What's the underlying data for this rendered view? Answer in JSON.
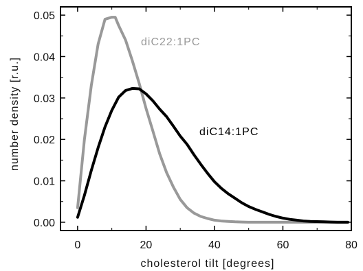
{
  "chart_data": {
    "type": "line",
    "xlabel": "cholesterol tilt  [degrees]",
    "ylabel": "number density  [r.u.]",
    "xlim": [
      -5,
      80
    ],
    "ylim": [
      -0.002,
      0.052
    ],
    "xticks": [
      0,
      20,
      40,
      60,
      80
    ],
    "yticks": [
      0.0,
      0.01,
      0.02,
      0.03,
      0.04,
      0.05
    ],
    "xtick_labels": [
      "0",
      "20",
      "40",
      "60",
      "80"
    ],
    "ytick_labels": [
      "0.00",
      "0.01",
      "0.02",
      "0.03",
      "0.04",
      "0.05"
    ],
    "grid": false,
    "series": [
      {
        "name": "diC22:1PC",
        "color": "#999999",
        "x": [
          0,
          2,
          4,
          6,
          8,
          10,
          11,
          12,
          14,
          16,
          18,
          20,
          22,
          24,
          26,
          28,
          30,
          32,
          34,
          36,
          38,
          40,
          42,
          44,
          46,
          48,
          50,
          55,
          60,
          65,
          70,
          75,
          79
        ],
        "y": [
          0.0035,
          0.02,
          0.033,
          0.043,
          0.049,
          0.0495,
          0.0495,
          0.0475,
          0.044,
          0.039,
          0.0335,
          0.0275,
          0.022,
          0.0165,
          0.012,
          0.0085,
          0.0055,
          0.0035,
          0.0022,
          0.0014,
          0.0009,
          0.0005,
          0.0003,
          0.0002,
          0.0001,
          5e-05,
          0.0,
          0.0,
          0.0,
          0.0,
          0.0,
          0.0,
          0.0
        ]
      },
      {
        "name": "diC14:1PC",
        "color": "#000000",
        "x": [
          0,
          2,
          4,
          6,
          8,
          10,
          12,
          14,
          16,
          18,
          20,
          22,
          24,
          26,
          28,
          30,
          32,
          34,
          36,
          38,
          40,
          42,
          44,
          46,
          48,
          50,
          52,
          54,
          56,
          58,
          60,
          62,
          64,
          66,
          68,
          70,
          72,
          74,
          76,
          78,
          79
        ],
        "y": [
          0.0012,
          0.0065,
          0.0125,
          0.018,
          0.023,
          0.027,
          0.0302,
          0.0318,
          0.0323,
          0.0322,
          0.031,
          0.0293,
          0.0273,
          0.0255,
          0.0232,
          0.0208,
          0.0188,
          0.0163,
          0.014,
          0.0118,
          0.0098,
          0.0082,
          0.0069,
          0.0058,
          0.0047,
          0.0038,
          0.0031,
          0.0025,
          0.0019,
          0.0014,
          0.001,
          0.0007,
          0.0005,
          0.0003,
          0.0002,
          0.00015,
          0.0001,
          5e-05,
          0.0,
          0.0,
          0.0
        ]
      }
    ]
  }
}
